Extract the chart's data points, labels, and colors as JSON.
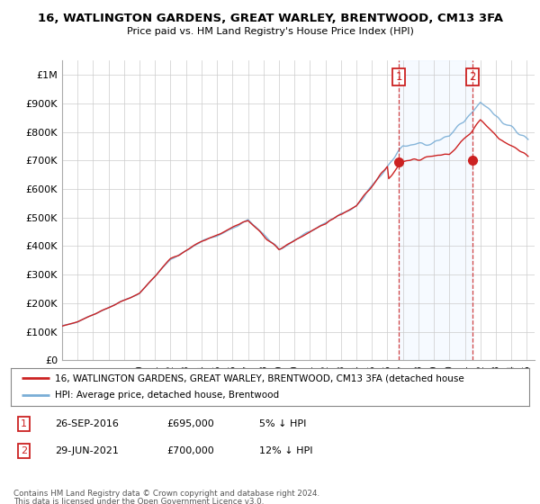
{
  "title": "16, WATLINGTON GARDENS, GREAT WARLEY, BRENTWOOD, CM13 3FA",
  "subtitle": "Price paid vs. HM Land Registry's House Price Index (HPI)",
  "ylabel_ticks": [
    "£0",
    "£100K",
    "£200K",
    "£300K",
    "£400K",
    "£500K",
    "£600K",
    "£700K",
    "£800K",
    "£900K",
    "£1M"
  ],
  "ytick_values": [
    0,
    100000,
    200000,
    300000,
    400000,
    500000,
    600000,
    700000,
    800000,
    900000,
    1000000
  ],
  "ylim": [
    0,
    1050000
  ],
  "xlim_start": 1995.0,
  "xlim_end": 2025.5,
  "hpi_color": "#7aaed6",
  "price_color": "#cc2222",
  "highlight_color": "#ddeeff",
  "transaction1_year": 2016.73,
  "transaction1_price": 695000,
  "transaction2_year": 2021.49,
  "transaction2_price": 700000,
  "legend_line1": "16, WATLINGTON GARDENS, GREAT WARLEY, BRENTWOOD, CM13 3FA (detached house",
  "legend_line2": "HPI: Average price, detached house, Brentwood",
  "footer1": "Contains HM Land Registry data © Crown copyright and database right 2024.",
  "footer2": "This data is licensed under the Open Government Licence v3.0.",
  "annotation1_label": "1",
  "annotation1_date": "26-SEP-2016",
  "annotation1_price": "£695,000",
  "annotation1_hpi": "5% ↓ HPI",
  "annotation2_label": "2",
  "annotation2_date": "29-JUN-2021",
  "annotation2_price": "£700,000",
  "annotation2_hpi": "12% ↓ HPI",
  "background_color": "#ffffff",
  "grid_color": "#cccccc"
}
